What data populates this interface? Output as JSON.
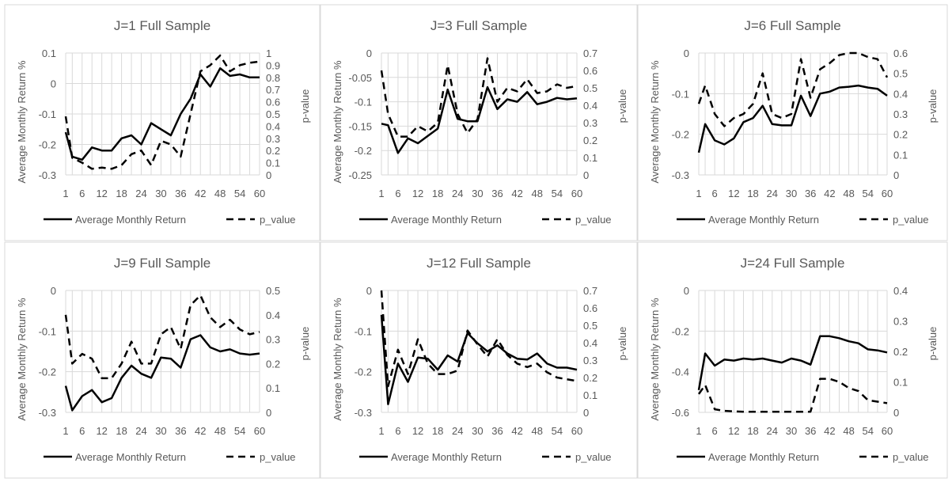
{
  "legend": {
    "return_label": "Average Monthly Return",
    "p_label": "p_value"
  },
  "chart_data": [
    {
      "type": "line",
      "title": "J=1 Full Sample",
      "x": [
        1,
        3,
        6,
        9,
        12,
        15,
        18,
        21,
        24,
        27,
        30,
        33,
        36,
        39,
        42,
        45,
        48,
        51,
        54,
        57,
        60
      ],
      "xticks": [
        1,
        6,
        12,
        18,
        24,
        30,
        36,
        42,
        48,
        54,
        60
      ],
      "ylabel": "Average Monthly Return %",
      "ylim": [
        -0.3,
        0.1
      ],
      "yticks": [
        -0.3,
        -0.2,
        -0.1,
        0,
        0.1
      ],
      "y2label": "p-value",
      "y2lim": [
        0,
        1
      ],
      "y2ticks": [
        0,
        0.1,
        0.2,
        0.3,
        0.4,
        0.5,
        0.6,
        0.7,
        0.8,
        0.9,
        1
      ],
      "series": [
        {
          "name": "Average Monthly Return",
          "axis": "left",
          "style": "solid",
          "values": [
            -0.16,
            -0.24,
            -0.25,
            -0.21,
            -0.22,
            -0.22,
            -0.18,
            -0.17,
            -0.2,
            -0.13,
            -0.15,
            -0.17,
            -0.1,
            -0.05,
            0.03,
            -0.01,
            0.05,
            0.025,
            0.03,
            0.02,
            0.02
          ]
        },
        {
          "name": "p_value",
          "axis": "right",
          "style": "dashed",
          "values": [
            0.48,
            0.14,
            0.1,
            0.05,
            0.06,
            0.05,
            0.08,
            0.17,
            0.2,
            0.08,
            0.28,
            0.25,
            0.15,
            0.5,
            0.85,
            0.9,
            0.98,
            0.85,
            0.9,
            0.92,
            0.93
          ]
        }
      ]
    },
    {
      "type": "line",
      "title": "J=3 Full Sample",
      "x": [
        1,
        3,
        6,
        9,
        12,
        15,
        18,
        21,
        24,
        27,
        30,
        33,
        36,
        39,
        42,
        45,
        48,
        51,
        54,
        57,
        60
      ],
      "xticks": [
        1,
        6,
        12,
        18,
        24,
        30,
        36,
        42,
        48,
        54,
        60
      ],
      "ylabel": "Average Monthly Return %",
      "ylim": [
        -0.25,
        0
      ],
      "yticks": [
        -0.25,
        -0.2,
        -0.15,
        -0.1,
        -0.05,
        0
      ],
      "y2label": "p-value",
      "y2lim": [
        0,
        0.7
      ],
      "y2ticks": [
        0,
        0.1,
        0.2,
        0.3,
        0.4,
        0.5,
        0.6,
        0.7
      ],
      "series": [
        {
          "name": "Average Monthly Return",
          "axis": "left",
          "style": "solid",
          "values": [
            -0.145,
            -0.148,
            -0.205,
            -0.175,
            -0.185,
            -0.17,
            -0.155,
            -0.075,
            -0.135,
            -0.14,
            -0.14,
            -0.07,
            -0.115,
            -0.095,
            -0.1,
            -0.08,
            -0.105,
            -0.1,
            -0.092,
            -0.095,
            -0.093
          ]
        },
        {
          "name": "p_value",
          "axis": "right",
          "style": "dashed",
          "values": [
            0.6,
            0.35,
            0.22,
            0.22,
            0.28,
            0.25,
            0.3,
            0.63,
            0.35,
            0.24,
            0.32,
            0.67,
            0.42,
            0.5,
            0.48,
            0.55,
            0.47,
            0.48,
            0.52,
            0.5,
            0.51
          ]
        }
      ]
    },
    {
      "type": "line",
      "title": "J=6 Full Sample",
      "x": [
        1,
        3,
        6,
        9,
        12,
        15,
        18,
        21,
        24,
        27,
        30,
        33,
        36,
        39,
        42,
        45,
        48,
        51,
        54,
        57,
        60
      ],
      "xticks": [
        1,
        6,
        12,
        18,
        24,
        30,
        36,
        42,
        48,
        54,
        60
      ],
      "ylabel": "Average Monthly Return %",
      "ylim": [
        -0.3,
        0
      ],
      "yticks": [
        -0.3,
        -0.2,
        -0.1,
        0
      ],
      "y2label": "p-value",
      "y2lim": [
        0,
        0.6
      ],
      "y2ticks": [
        0,
        0.1,
        0.2,
        0.3,
        0.4,
        0.5,
        0.6
      ],
      "series": [
        {
          "name": "Average Monthly Return",
          "axis": "left",
          "style": "solid",
          "values": [
            -0.245,
            -0.175,
            -0.215,
            -0.225,
            -0.21,
            -0.17,
            -0.16,
            -0.13,
            -0.175,
            -0.178,
            -0.178,
            -0.105,
            -0.155,
            -0.1,
            -0.095,
            -0.085,
            -0.083,
            -0.08,
            -0.085,
            -0.088,
            -0.105
          ]
        },
        {
          "name": "p_value",
          "axis": "right",
          "style": "dashed",
          "values": [
            0.35,
            0.44,
            0.3,
            0.24,
            0.28,
            0.3,
            0.35,
            0.5,
            0.3,
            0.28,
            0.3,
            0.57,
            0.38,
            0.52,
            0.55,
            0.59,
            0.6,
            0.6,
            0.58,
            0.57,
            0.48
          ]
        }
      ]
    },
    {
      "type": "line",
      "title": "J=9 Full Sample",
      "x": [
        1,
        3,
        6,
        9,
        12,
        15,
        18,
        21,
        24,
        27,
        30,
        33,
        36,
        39,
        42,
        45,
        48,
        51,
        54,
        57,
        60
      ],
      "xticks": [
        1,
        6,
        12,
        18,
        24,
        30,
        36,
        42,
        48,
        54,
        60
      ],
      "ylabel": "Average Monthly Return %",
      "ylim": [
        -0.3,
        0
      ],
      "yticks": [
        -0.3,
        -0.2,
        -0.1,
        0
      ],
      "y2label": "p-value",
      "y2lim": [
        0,
        0.5
      ],
      "y2ticks": [
        0,
        0.1,
        0.2,
        0.3,
        0.4,
        0.5
      ],
      "series": [
        {
          "name": "Average Monthly Return",
          "axis": "left",
          "style": "solid",
          "values": [
            -0.235,
            -0.295,
            -0.26,
            -0.245,
            -0.275,
            -0.265,
            -0.215,
            -0.185,
            -0.205,
            -0.215,
            -0.165,
            -0.168,
            -0.19,
            -0.12,
            -0.11,
            -0.14,
            -0.15,
            -0.145,
            -0.155,
            -0.158,
            -0.155
          ]
        },
        {
          "name": "p_value",
          "axis": "right",
          "style": "dashed",
          "values": [
            0.4,
            0.2,
            0.24,
            0.22,
            0.14,
            0.14,
            0.2,
            0.29,
            0.2,
            0.2,
            0.32,
            0.35,
            0.26,
            0.44,
            0.48,
            0.39,
            0.35,
            0.38,
            0.34,
            0.32,
            0.33
          ]
        }
      ]
    },
    {
      "type": "line",
      "title": "J=12 Full Sample",
      "x": [
        1,
        3,
        6,
        9,
        12,
        15,
        18,
        21,
        24,
        27,
        30,
        33,
        36,
        39,
        42,
        45,
        48,
        51,
        54,
        57,
        60
      ],
      "xticks": [
        1,
        6,
        12,
        18,
        24,
        30,
        36,
        42,
        48,
        54,
        60
      ],
      "ylabel": "Average Monthly Return %",
      "ylim": [
        -0.3,
        0
      ],
      "yticks": [
        -0.3,
        -0.2,
        -0.1,
        0
      ],
      "y2label": "p-value",
      "y2lim": [
        0,
        0.7
      ],
      "y2ticks": [
        0,
        0.1,
        0.2,
        0.3,
        0.4,
        0.5,
        0.6,
        0.7
      ],
      "series": [
        {
          "name": "Average Monthly Return",
          "axis": "left",
          "style": "solid",
          "values": [
            -0.06,
            -0.28,
            -0.18,
            -0.225,
            -0.165,
            -0.168,
            -0.195,
            -0.16,
            -0.175,
            -0.105,
            -0.13,
            -0.15,
            -0.135,
            -0.155,
            -0.168,
            -0.17,
            -0.155,
            -0.18,
            -0.19,
            -0.19,
            -0.195
          ]
        },
        {
          "name": "p_value",
          "axis": "right",
          "style": "dashed",
          "values": [
            0.7,
            0.15,
            0.36,
            0.22,
            0.42,
            0.28,
            0.22,
            0.22,
            0.24,
            0.47,
            0.39,
            0.32,
            0.42,
            0.33,
            0.28,
            0.26,
            0.28,
            0.23,
            0.2,
            0.19,
            0.18
          ]
        }
      ]
    },
    {
      "type": "line",
      "title": "J=24 Full Sample",
      "x": [
        1,
        3,
        6,
        9,
        12,
        15,
        18,
        21,
        24,
        27,
        30,
        33,
        36,
        39,
        42,
        45,
        48,
        51,
        54,
        57,
        60
      ],
      "xticks": [
        1,
        6,
        12,
        18,
        24,
        30,
        36,
        42,
        48,
        54,
        60
      ],
      "ylabel": "Average Monthly Return %",
      "ylim": [
        -0.6,
        0
      ],
      "yticks": [
        -0.6,
        -0.4,
        -0.2,
        0
      ],
      "y2label": "p-value",
      "y2lim": [
        0,
        0.4
      ],
      "y2ticks": [
        0,
        0.1,
        0.2,
        0.3,
        0.4
      ],
      "series": [
        {
          "name": "Average Monthly Return",
          "axis": "left",
          "style": "solid",
          "values": [
            -0.49,
            -0.31,
            -0.37,
            -0.34,
            -0.345,
            -0.335,
            -0.34,
            -0.335,
            -0.345,
            -0.355,
            -0.335,
            -0.345,
            -0.365,
            -0.225,
            -0.225,
            -0.235,
            -0.25,
            -0.26,
            -0.29,
            -0.295,
            -0.305
          ]
        },
        {
          "name": "p_value",
          "axis": "right",
          "style": "dashed",
          "values": [
            0.06,
            0.09,
            0.01,
            0.005,
            0.003,
            0.002,
            0.002,
            0.002,
            0.002,
            0.002,
            0.002,
            0.002,
            0.002,
            0.11,
            0.11,
            0.1,
            0.08,
            0.07,
            0.04,
            0.035,
            0.03
          ]
        }
      ]
    }
  ]
}
